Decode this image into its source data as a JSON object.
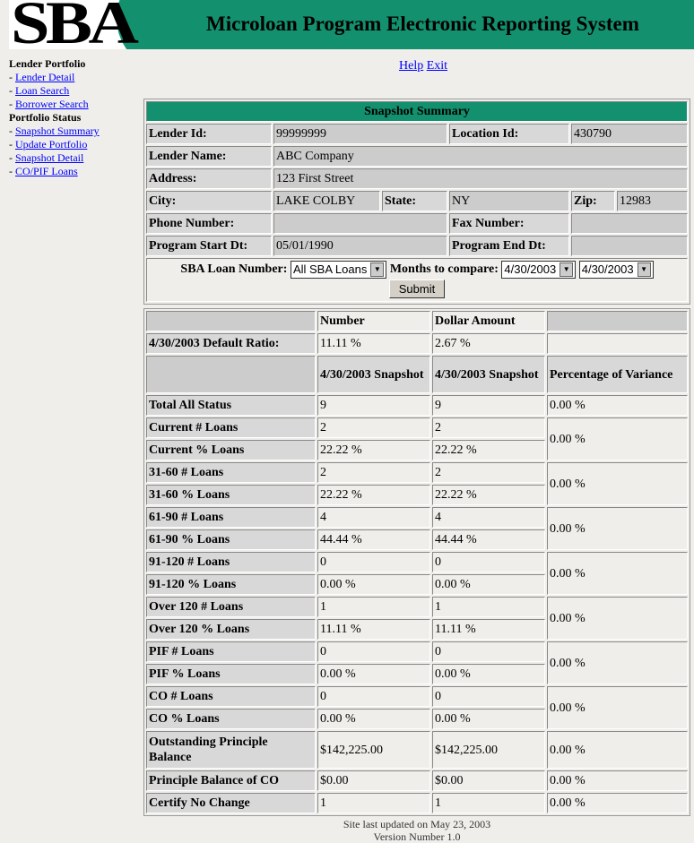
{
  "header": {
    "logo": "SBA",
    "title": "Microloan Program Electronic Reporting System",
    "brand_color": "#13916f"
  },
  "nav": {
    "sections": [
      {
        "title": "Lender Portfolio",
        "items": [
          "Lender Detail",
          "Loan Search",
          "Borrower Search"
        ]
      },
      {
        "title": "Portfolio Status",
        "items": [
          "Snapshot Summary",
          "Update Portfolio",
          "Snapshot Detail",
          "CO/PIF Loans"
        ]
      }
    ]
  },
  "top_links": {
    "help": "Help",
    "exit": "Exit"
  },
  "summary": {
    "title": "Snapshot Summary",
    "lender_id_label": "Lender Id:",
    "lender_id": "99999999",
    "location_id_label": "Location Id:",
    "location_id": "430790",
    "lender_name_label": "Lender Name:",
    "lender_name": "ABC Company",
    "address_label": "Address:",
    "address": "123 First Street",
    "city_label": "City:",
    "city": "LAKE COLBY",
    "state_label": "State:",
    "state": "NY",
    "zip_label": "Zip:",
    "zip": "12983",
    "phone_label": "Phone Number:",
    "phone": "",
    "fax_label": "Fax Number:",
    "fax": "",
    "start_label": "Program Start Dt:",
    "start": "05/01/1990",
    "end_label": "Program End Dt:",
    "end": ""
  },
  "filters": {
    "loan_label": "SBA Loan Number:",
    "loan_value": "All SBA Loans",
    "months_label": "Months to compare:",
    "month1": "4/30/2003",
    "month2": "4/30/2003",
    "submit": "Submit"
  },
  "ratio": {
    "h_number": "Number",
    "h_dollar": "Dollar Amount",
    "label": "4/30/2003 Default Ratio:",
    "number": "11.11 %",
    "dollar": "2.67 %"
  },
  "snap": {
    "h1": "4/30/2003 Snapshot",
    "h2": "4/30/2003 Snapshot",
    "h3": "Percentage of Variance",
    "rows": [
      {
        "label": "Total All Status",
        "a": "9",
        "b": "9",
        "v": "0.00 %"
      },
      {
        "label": "Current # Loans",
        "a": "2",
        "b": "2",
        "v": "0.00 %"
      },
      {
        "label": "Current % Loans",
        "a": "22.22 %",
        "b": "22.22 %"
      },
      {
        "label": "31-60 # Loans",
        "a": "2",
        "b": "2",
        "v": "0.00 %"
      },
      {
        "label": "31-60 % Loans",
        "a": "22.22 %",
        "b": "22.22 %"
      },
      {
        "label": "61-90 # Loans",
        "a": "4",
        "b": "4",
        "v": "0.00 %"
      },
      {
        "label": "61-90 % Loans",
        "a": "44.44 %",
        "b": "44.44 %"
      },
      {
        "label": "91-120 # Loans",
        "a": "0",
        "b": "0",
        "v": "0.00 %"
      },
      {
        "label": "91-120 % Loans",
        "a": "0.00 %",
        "b": "0.00 %"
      },
      {
        "label": "Over 120 # Loans",
        "a": "1",
        "b": "1",
        "v": "0.00 %"
      },
      {
        "label": "Over 120 % Loans",
        "a": "11.11 %",
        "b": "11.11 %"
      },
      {
        "label": "PIF # Loans",
        "a": "0",
        "b": "0",
        "v": "0.00 %"
      },
      {
        "label": "PIF % Loans",
        "a": "0.00 %",
        "b": "0.00 %"
      },
      {
        "label": "CO # Loans",
        "a": "0",
        "b": "0",
        "v": "0.00 %"
      },
      {
        "label": "CO % Loans",
        "a": "0.00 %",
        "b": "0.00 %"
      },
      {
        "label": "Outstanding Principle Balance",
        "a": "$142,225.00",
        "b": "$142,225.00",
        "v": "0.00 %"
      },
      {
        "label": "Principle Balance of CO",
        "a": "$0.00",
        "b": "$0.00",
        "v": "0.00 %"
      },
      {
        "label": "Certify No Change",
        "a": "1",
        "b": "1",
        "v": "0.00 %"
      }
    ]
  },
  "footer": {
    "updated": "Site last updated on May 23, 2003",
    "version": "Version Number 1.0"
  }
}
